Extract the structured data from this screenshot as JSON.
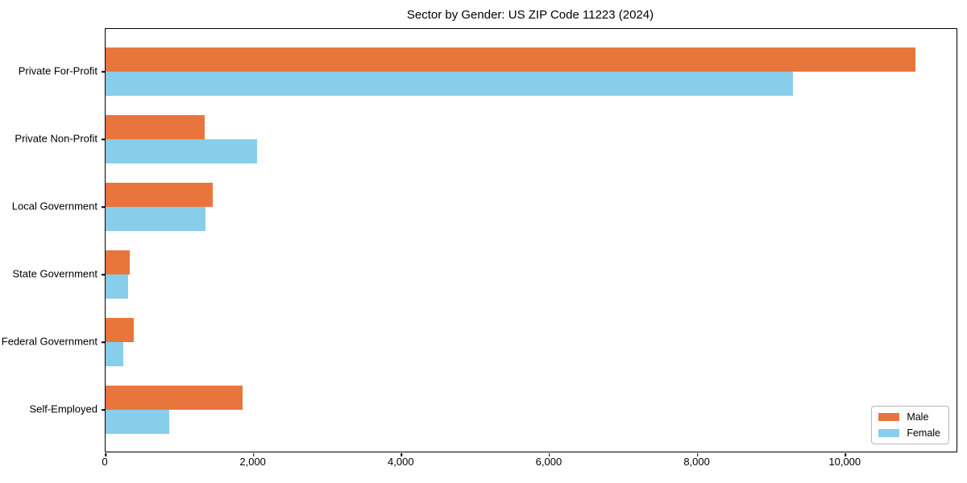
{
  "title": "Sector by Gender: US ZIP Code 11223 (2024)",
  "chart_data": {
    "type": "bar",
    "orientation": "horizontal",
    "title": "Sector by Gender: US ZIP Code 11223 (2024)",
    "xlabel": "",
    "ylabel": "",
    "categories": [
      "Private For-Profit",
      "Private Non-Profit",
      "Local Government",
      "State Government",
      "Federal Government",
      "Self-Employed"
    ],
    "series": [
      {
        "name": "Male",
        "color": "#e8763c",
        "values": [
          10950,
          1340,
          1450,
          330,
          380,
          1850
        ]
      },
      {
        "name": "Female",
        "color": "#87ceeb",
        "values": [
          9290,
          2050,
          1350,
          310,
          240,
          860
        ]
      }
    ],
    "xlim": [
      0,
      11500
    ],
    "x_ticks": [
      0,
      2000,
      4000,
      6000,
      8000,
      10000
    ],
    "x_tick_labels": [
      "0",
      "2,000",
      "4,000",
      "6,000",
      "8,000",
      "10,000"
    ],
    "grid": false,
    "legend_position": "lower right"
  },
  "legend": {
    "items": [
      {
        "label": "Male",
        "color": "#e8763c"
      },
      {
        "label": "Female",
        "color": "#87ceeb"
      }
    ]
  }
}
